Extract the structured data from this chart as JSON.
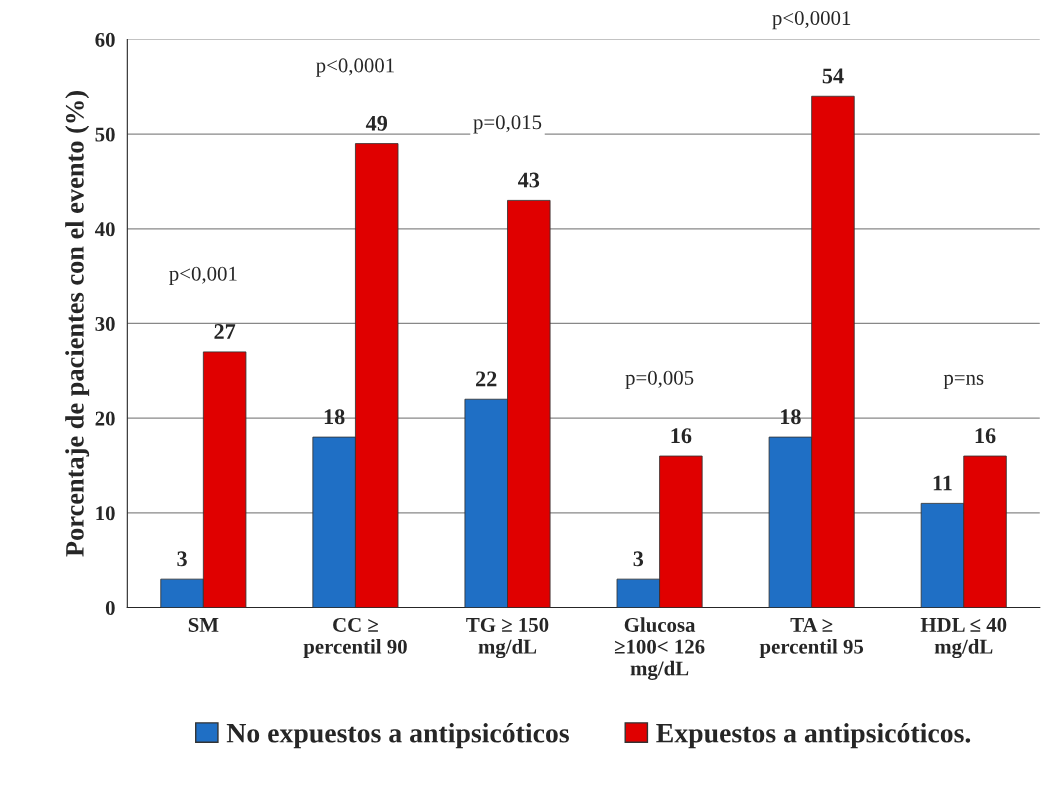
{
  "chart_data": {
    "type": "bar",
    "ylabel": "Porcentaje de pacientes con el evento (%)",
    "categories": [
      "SM",
      "CC ≥\npercentil 90",
      "TG ≥ 150\nmg/dL",
      "Glucosa\n≥100< 126\nmg/dL",
      "TA ≥\npercentil 95",
      "HDL ≤ 40\nmg/dL"
    ],
    "series": [
      {
        "name": "No expuestos a antipsicóticos",
        "color": "#1f6fc5",
        "values": [
          3,
          18,
          22,
          3,
          18,
          11
        ]
      },
      {
        "name": "Expuestos a antipsicóticos.",
        "color": "#e00000",
        "values": [
          27,
          49,
          43,
          16,
          54,
          16
        ]
      }
    ],
    "ylim": [
      0,
      60
    ],
    "yticks": [
      0,
      10,
      20,
      30,
      40,
      50,
      60
    ],
    "grid": "y",
    "data_labels": true,
    "legend": "bottom",
    "annotations": [
      "p<0,001",
      "p<0,0001",
      "p=0,015",
      "p=0,005",
      "p<0,0001",
      "p=ns"
    ]
  }
}
